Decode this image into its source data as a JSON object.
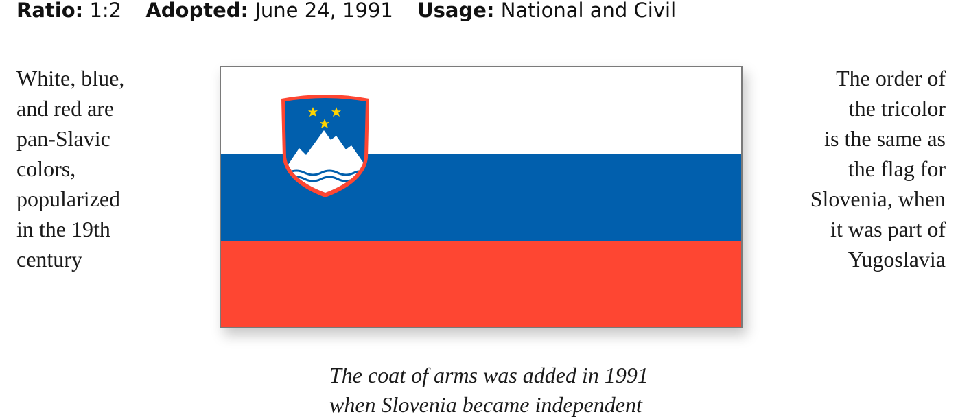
{
  "header": {
    "ratio_label": "Ratio:",
    "ratio_value": "1:2",
    "adopted_label": "Adopted:",
    "adopted_value": "June 24, 1991",
    "usage_label": "Usage:",
    "usage_value": "National and Civil"
  },
  "left_note": {
    "lines": [
      "White, blue,",
      "and red are",
      "pan-Slavic",
      "colors,",
      "popularized",
      "in the 19th",
      "century"
    ]
  },
  "right_note": {
    "lines": [
      "The order of",
      "the tricolor",
      "is the same as",
      "the flag for",
      "Slovenia, when",
      "it was part of",
      "Yugoslavia"
    ]
  },
  "caption": {
    "lines": [
      "The coat of arms was added in 1991",
      "when Slovenia became independent"
    ]
  },
  "flag": {
    "colors": {
      "white": "#ffffff",
      "blue": "#015fad",
      "red": "#fe4632",
      "star": "#ffd400"
    },
    "icon": "slovenian-coat-of-arms"
  }
}
